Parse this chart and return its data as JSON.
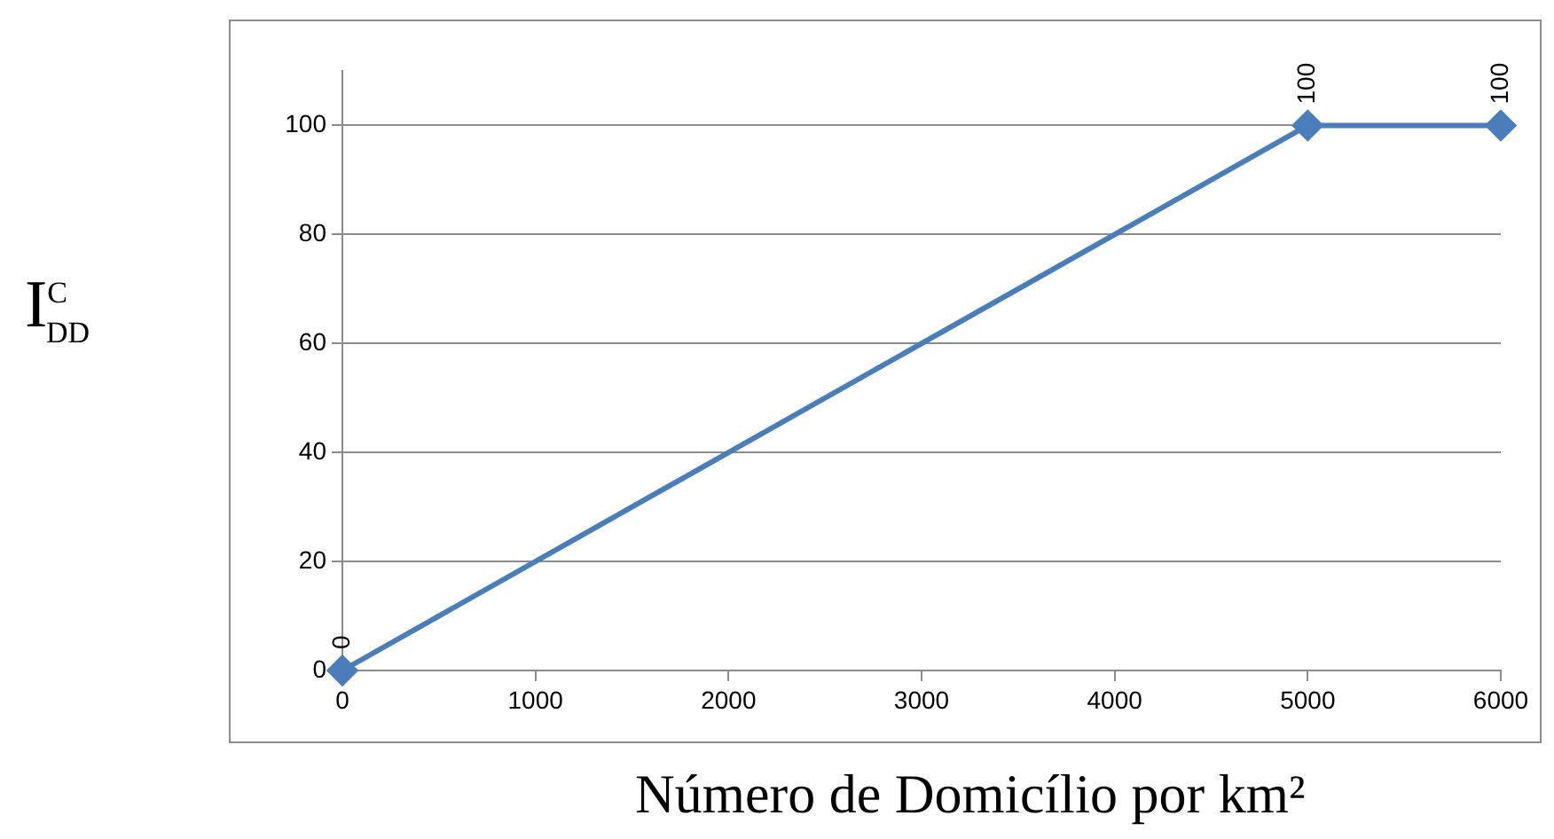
{
  "chart_data": {
    "type": "line",
    "xlabel": "Número de Domicílio por km²",
    "ylabel": "I$^{C}$$_{DD}$",
    "x": [
      0,
      5000,
      6000
    ],
    "series": [
      {
        "color": "#4a7ebb",
        "values": [
          0,
          100,
          100
        ]
      }
    ],
    "xlim": [
      0,
      6000
    ],
    "xticks": [
      0,
      1000,
      2000,
      3000,
      4000,
      5000,
      6000
    ],
    "ylim": [
      0,
      110
    ],
    "yticks": [
      0,
      20,
      40,
      60,
      80,
      100
    ],
    "grid": "y",
    "legend": false,
    "marker": "diamond",
    "line_style": "solid",
    "data_labels": true
  }
}
